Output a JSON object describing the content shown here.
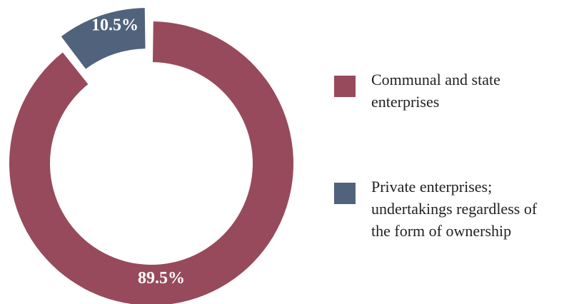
{
  "colors": {
    "communal": "#974A5B",
    "private": "#51627D",
    "label_text": "#ffffff"
  },
  "chart_data": {
    "type": "pie",
    "variant": "donut",
    "title": "",
    "categories": [
      "Communal and state enterprises",
      "Private enterprises; undertakings regardless of the form of ownership"
    ],
    "values": [
      89.5,
      10.5
    ],
    "value_labels": [
      "89.5%",
      "10.5%"
    ],
    "exploded_slice": "Private enterprises; undertakings regardless of the form of ownership",
    "legend_placement": "right",
    "legend": [
      {
        "name": "Communal and state enterprises",
        "lines": [
          "Communal and state",
          "enterprises"
        ]
      },
      {
        "name": "Private enterprises; undertakings regardless of the form of ownership",
        "lines": [
          "Private enterprises;",
          "undertakings regardless of",
          "the form of ownership"
        ]
      }
    ]
  }
}
